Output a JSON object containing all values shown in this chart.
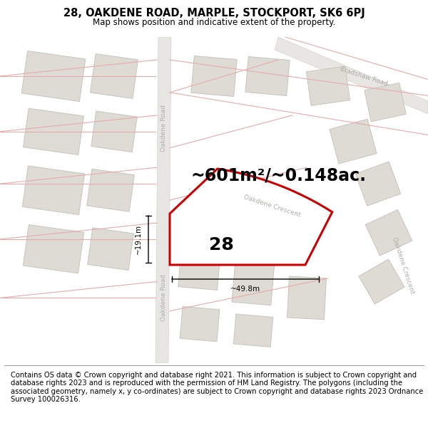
{
  "title": "28, OAKDENE ROAD, MARPLE, STOCKPORT, SK6 6PJ",
  "subtitle": "Map shows position and indicative extent of the property.",
  "area_text": "~601m²/~0.148ac.",
  "number_label": "28",
  "dim_width": "~49.8m",
  "dim_height": "~19.1m",
  "footer": "Contains OS data © Crown copyright and database right 2021. This information is subject to Crown copyright and database rights 2023 and is reproduced with the permission of HM Land Registry. The polygons (including the associated geometry, namely x, y co-ordinates) are subject to Crown copyright and database rights 2023 Ordnance Survey 100026316.",
  "bg_color": "#ffffff",
  "map_bg": "#f2f0ed",
  "building_fill": "#dedad4",
  "building_edge": "#c8c4be",
  "road_fill": "#e8e6e2",
  "road_edge": "#d0cdc8",
  "property_fill": "#ffffff",
  "property_edge": "#cc0000",
  "plot_line_color": "#e8aaaa",
  "road_label_color": "#b0aeaa",
  "dim_color": "#111111",
  "title_fontsize": 10.5,
  "subtitle_fontsize": 8.5,
  "area_fontsize": 17,
  "number_fontsize": 18,
  "dim_fontsize": 7.5,
  "road_label_fontsize": 6.5,
  "footer_fontsize": 7.2
}
